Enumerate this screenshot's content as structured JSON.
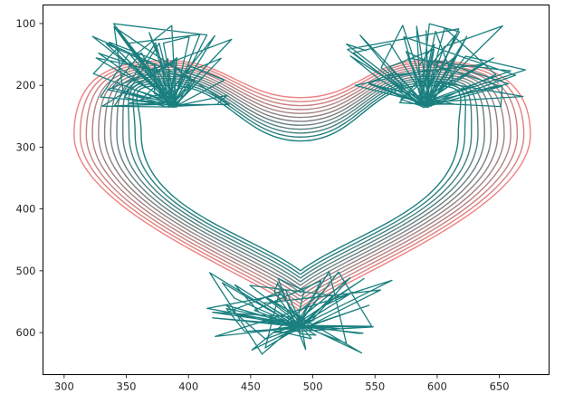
{
  "chart_data": {
    "type": "line",
    "title": "",
    "xlabel": "",
    "ylabel": "",
    "xlim": [
      283,
      690
    ],
    "ylim": [
      668,
      70
    ],
    "y_inverted": true,
    "grid": false,
    "x_ticks": [
      "300",
      "350",
      "400",
      "450",
      "500",
      "550",
      "600",
      "650"
    ],
    "y_ticks": [
      "100",
      "200",
      "300",
      "400",
      "500",
      "600"
    ],
    "colors": {
      "outer_curve": "#f08080",
      "inner_curve": "#1a7f7f",
      "tangle": "#1a7f7f",
      "axes": "#000000"
    },
    "series": [
      {
        "family": "heart",
        "count": 12,
        "outer": {
          "top_y": 220,
          "side_y": 280,
          "lobe_x": [
            385,
            590
          ],
          "outer_x": [
            308,
            675
          ],
          "bottom": [
            490,
            565
          ]
        },
        "inner": {
          "top_y": 290,
          "side_y": 280,
          "lobe_x": [
            387,
            590
          ],
          "outer_x": [
            362,
            617
          ],
          "bottom": [
            490,
            500
          ]
        }
      },
      {
        "family": "tangle",
        "region": "top-left",
        "center": [
          388,
          232
        ],
        "x_range": [
          320,
          440
        ],
        "y_range": [
          100,
          235
        ]
      },
      {
        "family": "tangle",
        "region": "top-right",
        "center": [
          590,
          232
        ],
        "x_range": [
          525,
          675
        ],
        "y_range": [
          100,
          235
        ]
      },
      {
        "family": "tangle",
        "region": "bottom",
        "center": [
          490,
          590
        ],
        "x_range": [
          415,
          565
        ],
        "y_range": [
          500,
          635
        ]
      }
    ]
  }
}
